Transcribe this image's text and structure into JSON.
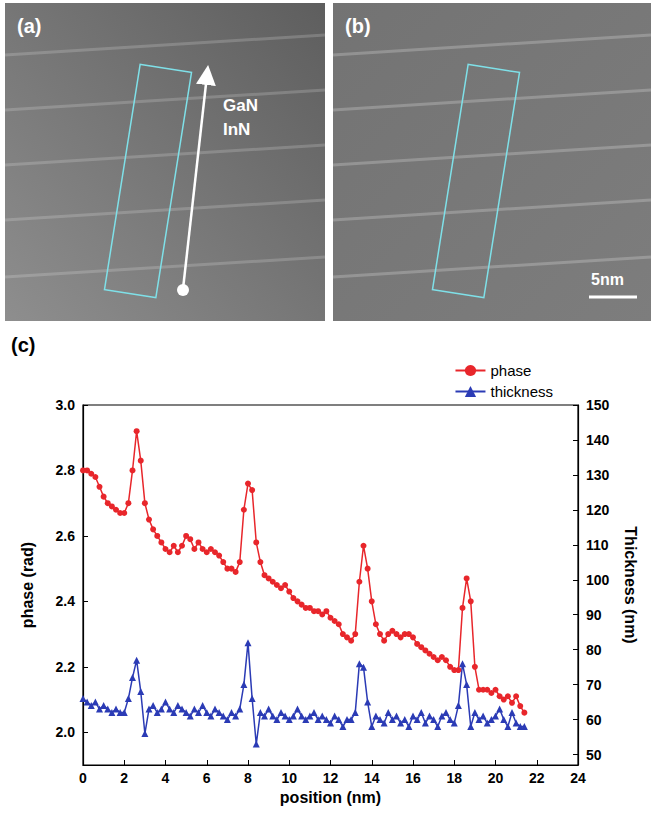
{
  "panels": [
    {
      "label": "(a)",
      "texts": [
        "GaN",
        "InN"
      ]
    },
    {
      "label": "(b)",
      "scale_bar": "5nm"
    }
  ],
  "chart_data": {
    "type": "line",
    "label": "(c)",
    "x_label": "position (nm)",
    "y_label": "phase (rad)",
    "y2_label": "Thickness (nm)",
    "x": [
      0,
      0.2,
      0.4,
      0.6,
      0.8,
      1,
      1.2,
      1.4,
      1.6,
      1.8,
      2,
      2.2,
      2.4,
      2.6,
      2.8,
      3,
      3.2,
      3.4,
      3.6,
      3.8,
      4,
      4.2,
      4.4,
      4.6,
      4.8,
      5,
      5.2,
      5.4,
      5.6,
      5.8,
      6,
      6.2,
      6.4,
      6.6,
      6.8,
      7,
      7.2,
      7.4,
      7.6,
      7.8,
      8,
      8.2,
      8.4,
      8.6,
      8.8,
      9,
      9.2,
      9.4,
      9.6,
      9.8,
      10,
      10.2,
      10.4,
      10.6,
      10.8,
      11,
      11.2,
      11.4,
      11.6,
      11.8,
      12,
      12.2,
      12.4,
      12.6,
      12.8,
      13,
      13.2,
      13.4,
      13.6,
      13.8,
      14,
      14.2,
      14.4,
      14.6,
      14.8,
      15,
      15.2,
      15.4,
      15.6,
      15.8,
      16,
      16.2,
      16.4,
      16.6,
      16.8,
      17,
      17.2,
      17.4,
      17.6,
      17.8,
      18,
      18.2,
      18.4,
      18.6,
      18.8,
      19,
      19.2,
      19.4,
      19.6,
      19.8,
      20,
      20.2,
      20.4,
      20.6,
      20.8,
      21,
      21.2,
      21.4
    ],
    "series": [
      {
        "name": "phase",
        "color": "#e8262b",
        "marker": "circle",
        "line_style": "solid",
        "values": [
          2.8,
          2.8,
          2.79,
          2.78,
          2.75,
          2.72,
          2.7,
          2.69,
          2.68,
          2.67,
          2.67,
          2.7,
          2.8,
          2.92,
          2.83,
          2.7,
          2.65,
          2.62,
          2.6,
          2.58,
          2.56,
          2.55,
          2.57,
          2.55,
          2.57,
          2.6,
          2.59,
          2.56,
          2.58,
          2.56,
          2.55,
          2.56,
          2.55,
          2.54,
          2.52,
          2.5,
          2.5,
          2.49,
          2.52,
          2.68,
          2.76,
          2.74,
          2.58,
          2.52,
          2.48,
          2.47,
          2.46,
          2.45,
          2.44,
          2.45,
          2.43,
          2.41,
          2.4,
          2.39,
          2.38,
          2.38,
          2.37,
          2.37,
          2.36,
          2.37,
          2.35,
          2.34,
          2.33,
          2.3,
          2.29,
          2.28,
          2.3,
          2.46,
          2.57,
          2.5,
          2.4,
          2.33,
          2.3,
          2.28,
          2.3,
          2.31,
          2.3,
          2.29,
          2.3,
          2.3,
          2.29,
          2.27,
          2.26,
          2.25,
          2.24,
          2.23,
          2.22,
          2.23,
          2.22,
          2.2,
          2.19,
          2.19,
          2.38,
          2.47,
          2.4,
          2.2,
          2.13,
          2.13,
          2.13,
          2.12,
          2.13,
          2.11,
          2.1,
          2.11,
          2.09,
          2.11,
          2.08,
          2.06
        ]
      },
      {
        "name": "thickness",
        "color": "#2b3bb5",
        "marker": "triangle",
        "line_style": "solid",
        "axis": "y2",
        "values": [
          66,
          65,
          64,
          65,
          63,
          64,
          63,
          62,
          63,
          62,
          62,
          66,
          72,
          77,
          68,
          56,
          63,
          64,
          62,
          63,
          65,
          63,
          62,
          64,
          63,
          62,
          61,
          63,
          62,
          64,
          62,
          61,
          63,
          62,
          61,
          60,
          62,
          61,
          63,
          70,
          82,
          66,
          53,
          62,
          61,
          63,
          61,
          60,
          62,
          61,
          60,
          61,
          63,
          61,
          60,
          61,
          62,
          60,
          61,
          60,
          59,
          61,
          60,
          58,
          60,
          60,
          62,
          76,
          75,
          65,
          58,
          61,
          60,
          59,
          62,
          60,
          61,
          59,
          60,
          58,
          61,
          60,
          62,
          59,
          61,
          60,
          58,
          61,
          62,
          60,
          59,
          64,
          76,
          70,
          58,
          62,
          60,
          61,
          59,
          60,
          61,
          63,
          60,
          58,
          62,
          59,
          58,
          58
        ]
      }
    ],
    "xlim": [
      0,
      24
    ],
    "xticks": [
      0,
      2,
      4,
      6,
      8,
      10,
      12,
      14,
      16,
      18,
      20,
      22,
      24
    ],
    "ylim": [
      1.9,
      3.0
    ],
    "yticks": [
      {
        "value": 2,
        "label": "2.0"
      },
      2.2,
      2.4,
      2.6,
      2.8,
      {
        "value": 3,
        "label": "3.0"
      }
    ],
    "y2lim": [
      47,
      150
    ],
    "y2ticks": [
      50,
      60,
      70,
      80,
      90,
      100,
      110,
      120,
      130,
      140,
      150
    ],
    "grid": false,
    "legend": "top-right"
  }
}
